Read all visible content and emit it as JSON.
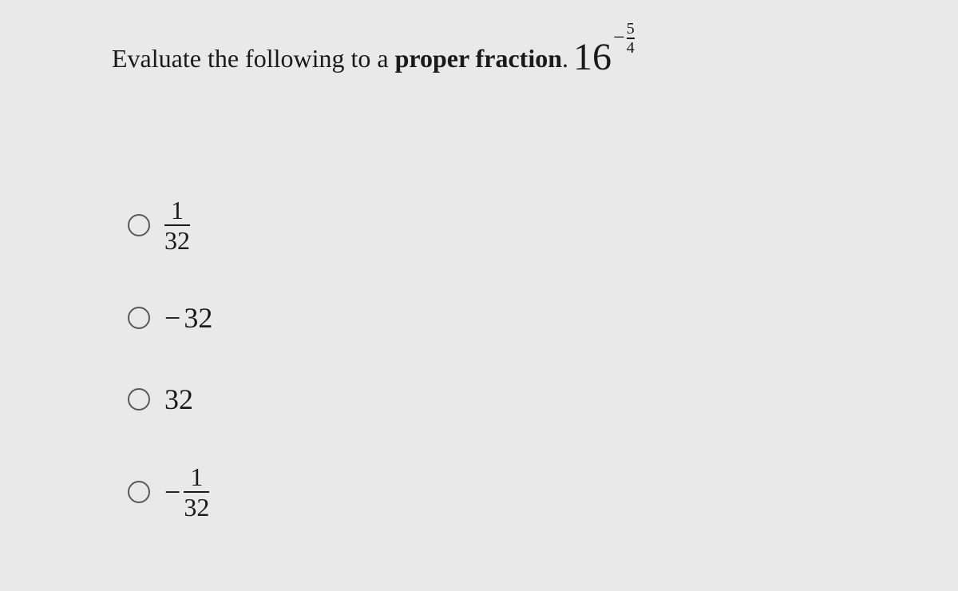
{
  "question": {
    "prompt_plain": "Evaluate the following to a ",
    "prompt_bold": "proper fraction",
    "prompt_after": ".",
    "math": {
      "base": "16",
      "exp_sign": "−",
      "exp_num": "5",
      "exp_den": "4"
    }
  },
  "options": [
    {
      "type": "fraction",
      "sign": "",
      "num": "1",
      "den": "32"
    },
    {
      "type": "integer",
      "sign": "−",
      "value": "32"
    },
    {
      "type": "integer",
      "sign": "",
      "value": "32"
    },
    {
      "type": "fraction",
      "sign": "−",
      "num": "1",
      "den": "32"
    }
  ],
  "styling": {
    "background_color": "#e8e9e8",
    "text_color": "#1a1a1a",
    "radio_border_color": "#5a5a5a",
    "question_fontsize": 32,
    "math_base_fontsize": 48,
    "option_fontsize": 36,
    "font_family": "Georgia, 'Times New Roman', serif"
  }
}
